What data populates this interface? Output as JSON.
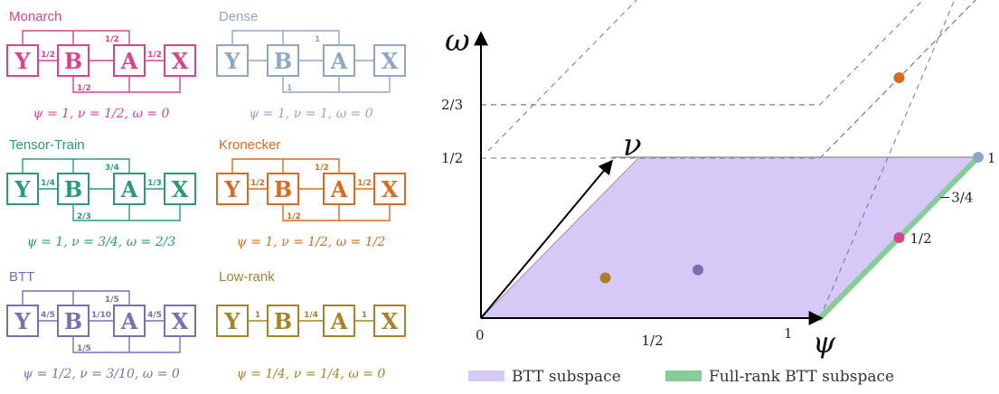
{
  "panels": [
    {
      "id": "monarch",
      "title": "Monarch",
      "color": "#d6448e",
      "boxes": [
        "Y",
        "B",
        "A",
        "X"
      ],
      "weights": {
        "yb": "1/2",
        "ba": "",
        "ax": "1/2",
        "top": "1/2",
        "bottom": "1/2"
      },
      "caption": "ψ = 1, ν = 1/2, ω = 0"
    },
    {
      "id": "dense",
      "title": "Dense",
      "color": "#8ea6c8",
      "boxes": [
        "Y",
        "B",
        "A",
        "X"
      ],
      "weights": {
        "yb": "",
        "ba": "",
        "ax": "",
        "top": "1",
        "bottom": "1"
      },
      "caption": "ψ = 1, ν = 1, ω = 0"
    },
    {
      "id": "tensor-train",
      "title": "Tensor-Train",
      "color": "#2a9a78",
      "boxes": [
        "Y",
        "B",
        "A",
        "X"
      ],
      "weights": {
        "yb": "1/4",
        "ba": "",
        "ax": "1/3",
        "top": "3/4",
        "bottom": "2/3"
      },
      "caption": "ψ = 1, ν = 3/4, ω = 2/3"
    },
    {
      "id": "kronecker",
      "title": "Kronecker",
      "color": "#d96a1e",
      "boxes": [
        "Y",
        "B",
        "A",
        "X"
      ],
      "weights": {
        "yb": "1/2",
        "ba": "",
        "ax": "1/2",
        "top": "1/2",
        "bottom": "1/2"
      },
      "caption": "ψ = 1, ν = 1/2, ω = 1/2"
    },
    {
      "id": "btt",
      "title": "BTT",
      "color": "#7670b2",
      "boxes": [
        "Y",
        "B",
        "A",
        "X"
      ],
      "weights": {
        "yb": "4/5",
        "ba": "1/10",
        "ax": "4/5",
        "top": "1/5",
        "bottom": "1/5"
      },
      "caption": "ψ = 1/2, ν = 3/10, ω = 0"
    },
    {
      "id": "low-rank",
      "title": "Low-rank",
      "color": "#a8822a",
      "boxes": [
        "Y",
        "B",
        "A",
        "X"
      ],
      "weights": {
        "yb": "1",
        "ba": "1/4",
        "ax": "1",
        "top": "",
        "bottom": ""
      },
      "caption": "ψ = 1/4, ν = 1/4, ω = 0"
    }
  ],
  "plot": {
    "axes": {
      "x": "ψ",
      "y": "ν",
      "z": "ω"
    },
    "x_ticks": [
      "0",
      "1/2",
      "1"
    ],
    "z_ticks": [
      "1/2",
      "2/3"
    ],
    "edge_ticks": [
      "1/2",
      "3/4",
      "1"
    ],
    "points": [
      {
        "name": "Low-rank",
        "psi": 0.25,
        "nu": 0.25,
        "omega": 0,
        "color": "#a8822a"
      },
      {
        "name": "BTT",
        "psi": 0.5,
        "nu": 0.3,
        "omega": 0,
        "color": "#7670b2"
      },
      {
        "name": "Monarch",
        "psi": 1,
        "nu": 0.5,
        "omega": 0,
        "color": "#d6448e"
      },
      {
        "name": "Kronecker",
        "psi": 1,
        "nu": 0.5,
        "omega": 0.5,
        "color": "#d96a1e"
      },
      {
        "name": "Dense",
        "psi": 1,
        "nu": 1,
        "omega": 0,
        "color": "#8ea6c8"
      },
      {
        "name": "Tensor-Train",
        "psi": 1,
        "nu": 0.75,
        "omega": 0.667,
        "color": "#2a9a78"
      }
    ],
    "legend": [
      {
        "label": "BTT subspace",
        "color": "#d6c8f7"
      },
      {
        "label": "Full-rank BTT subspace",
        "color": "#86cc96"
      }
    ]
  }
}
